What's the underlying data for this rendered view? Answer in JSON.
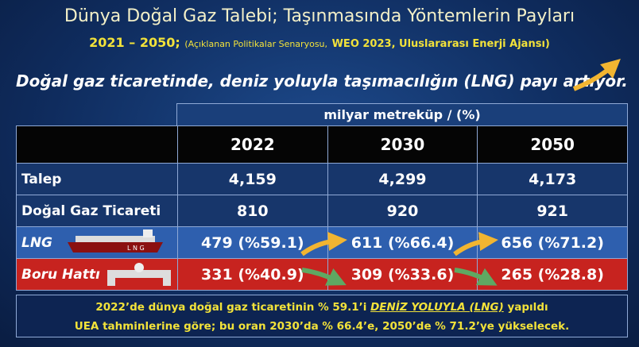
{
  "header": {
    "title": "Dünya Doğal Gaz Talebi; Taşınmasında Yöntemlerin Payları",
    "years": "2021 – 2050;",
    "source_scenario": "(Açıklanan Politikalar Senaryosu,",
    "source_report": "WEO 2023, Uluslararası Enerji Ajansı)"
  },
  "headline": "Doğal gaz ticaretinde, deniz yoluyla taşımacılığın (LNG) payı artıyor.",
  "table": {
    "unit": "milyar metreküp / (%)",
    "columns": [
      "2022",
      "2030",
      "2050"
    ],
    "rows": [
      [
        "Talep",
        "4,159",
        "4,299",
        "4,173"
      ],
      [
        "Doğal Gaz Ticareti",
        "810",
        "920",
        "921"
      ],
      [
        "LNG",
        "479 (%59.1)",
        "611 (%66.4)",
        "656 (%71.2)"
      ],
      [
        "Boru Hattı",
        "331 (%40.9)",
        "309 (%33.6)",
        "265 (%28.8)"
      ]
    ]
  },
  "footer": {
    "line1_start": "2022’de dünya doğal gaz ticaretinin %  59.1’i",
    "line1_emphasis": "DENİZ YOLUYLA (LNG)",
    "line1_end": "yapıldı",
    "line2": "UEA tahminlerine göre; bu oran 2030’da % 66.4’e, 2050’de % 71.2’ye yükselecek."
  }
}
